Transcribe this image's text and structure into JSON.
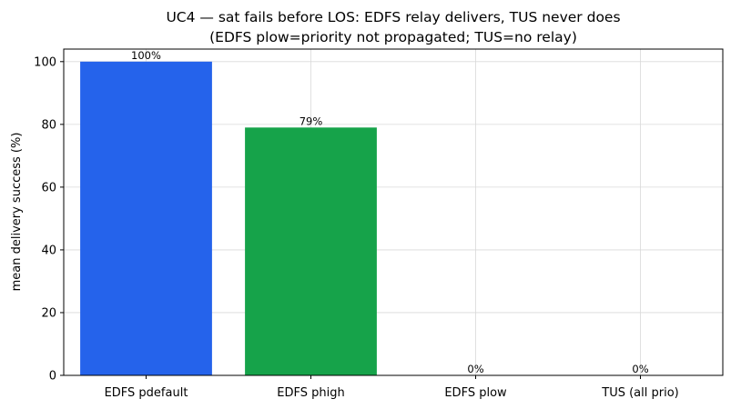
{
  "chart_data": {
    "type": "bar",
    "title": "UC4 — sat fails before LOS: EDFS relay delivers, TUS never does",
    "subtitle": "(EDFS plow=priority not propagated; TUS=no relay)",
    "xlabel": "",
    "ylabel": "mean delivery success (%)",
    "categories": [
      "EDFS pdefault",
      "EDFS phigh",
      "EDFS plow",
      "TUS (all prio)"
    ],
    "values": [
      100,
      79,
      0,
      0
    ],
    "data_labels": [
      "100%",
      "79%",
      "0%",
      "0%"
    ],
    "colors": [
      "#2563eb",
      "#16a34a",
      "#dc2626",
      "#6b7280"
    ],
    "ylim": [
      0,
      104
    ],
    "yticks": [
      0,
      20,
      40,
      60,
      80,
      100
    ],
    "grid": true,
    "legend": "none"
  }
}
